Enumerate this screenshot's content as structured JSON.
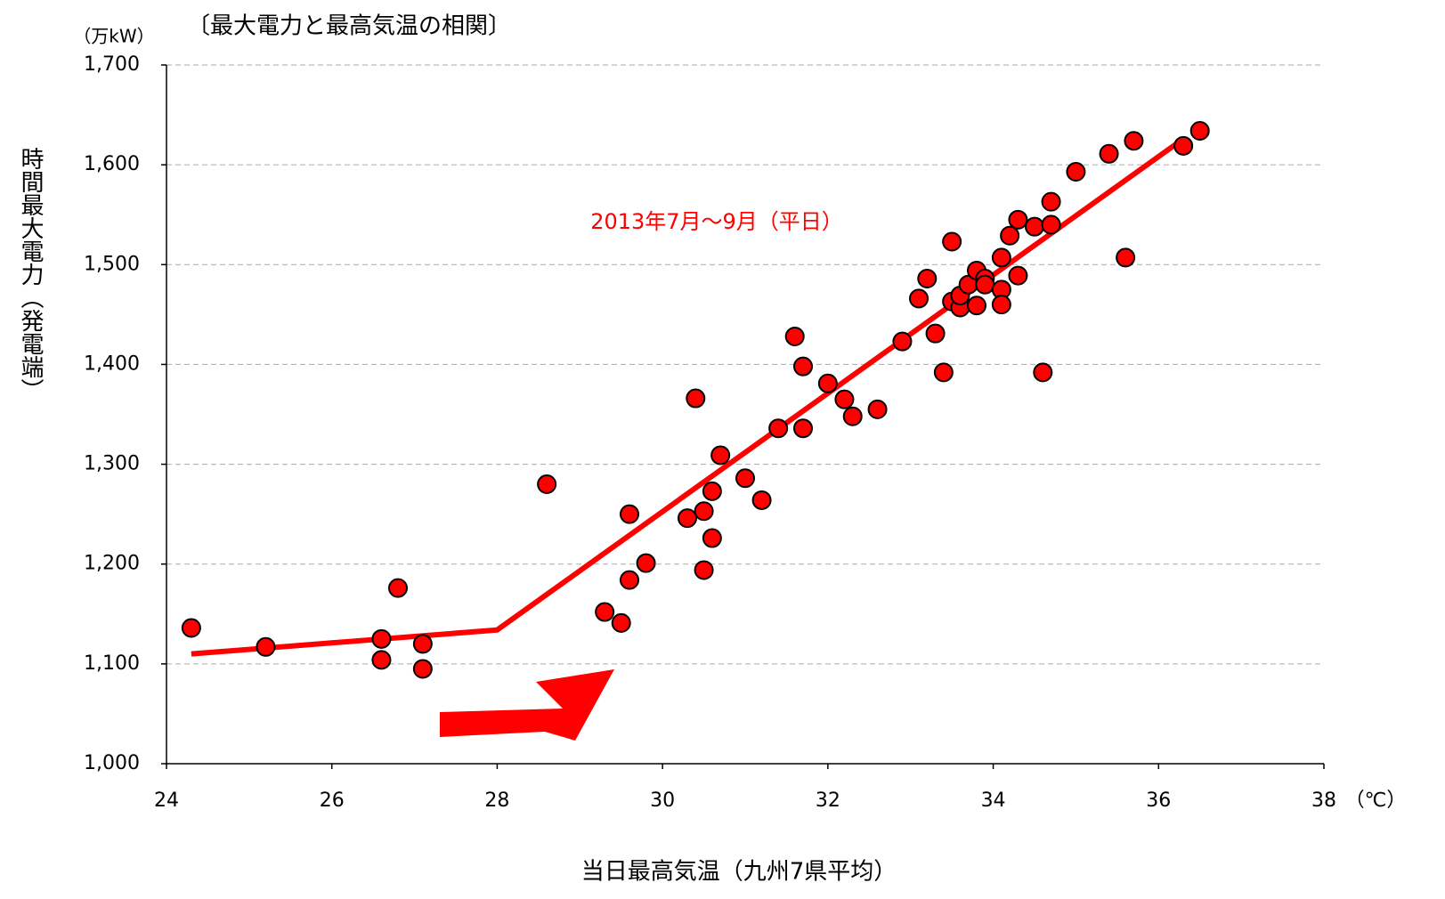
{
  "chart_data": {
    "type": "scatter",
    "title": "〔最大電力と最高気温の相関〕",
    "y_unit": "（万kW）",
    "y_label": "時間最大電力（発電端）",
    "x_label": "当日最高気温（九州7県平均）",
    "x_unit": "（℃）",
    "annotation": "2013年7月～9月（平日）",
    "color": "#ff0000",
    "x": [
      24.3,
      25.2,
      26.6,
      26.6,
      26.8,
      27.1,
      27.1,
      28.6,
      29.3,
      29.5,
      29.6,
      29.6,
      29.8,
      30.3,
      30.4,
      30.5,
      30.5,
      30.6,
      30.6,
      30.7,
      31.0,
      31.2,
      31.4,
      31.6,
      31.7,
      31.7,
      32.0,
      32.2,
      32.3,
      32.6,
      32.9,
      33.1,
      33.2,
      33.3,
      33.4,
      33.5,
      33.5,
      33.6,
      33.6,
      33.7,
      33.8,
      33.8,
      33.9,
      33.9,
      34.1,
      34.1,
      34.1,
      34.2,
      34.3,
      34.3,
      34.5,
      34.6,
      34.7,
      34.7,
      35.0,
      35.4,
      35.6,
      35.7,
      36.3,
      36.5
    ],
    "values": [
      1136,
      1117,
      1125,
      1104,
      1176,
      1120,
      1095,
      1280,
      1152,
      1141,
      1250,
      1184,
      1201,
      1246,
      1366,
      1253,
      1194,
      1273,
      1226,
      1309,
      1286,
      1264,
      1336,
      1428,
      1398,
      1336,
      1381,
      1365,
      1348,
      1355,
      1423,
      1466,
      1486,
      1431,
      1392,
      1523,
      1463,
      1457,
      1469,
      1480,
      1494,
      1459,
      1486,
      1480,
      1507,
      1475,
      1460,
      1529,
      1545,
      1489,
      1538,
      1392,
      1563,
      1540,
      1593,
      1611,
      1507,
      1624,
      1619,
      1634
    ],
    "fit": {
      "x": [
        24.3,
        28.0,
        36.3
      ],
      "y": [
        1110,
        1134,
        1626
      ],
      "color": "#ff0000"
    },
    "xlim": [
      24,
      38
    ],
    "xticks": [
      24,
      26,
      28,
      30,
      32,
      34,
      36,
      38
    ],
    "ylim": [
      1000,
      1700
    ],
    "yticks": [
      {
        "value": 1000,
        "label": "1,000"
      },
      {
        "value": 1100,
        "label": "1,100"
      },
      {
        "value": 1200,
        "label": "1,200"
      },
      {
        "value": 1300,
        "label": "1,300"
      },
      {
        "value": 1400,
        "label": "1,400"
      },
      {
        "value": 1500,
        "label": "1,500"
      },
      {
        "value": 1600,
        "label": "1,600"
      },
      {
        "value": 1700,
        "label": "1,700"
      }
    ],
    "grid": true
  }
}
